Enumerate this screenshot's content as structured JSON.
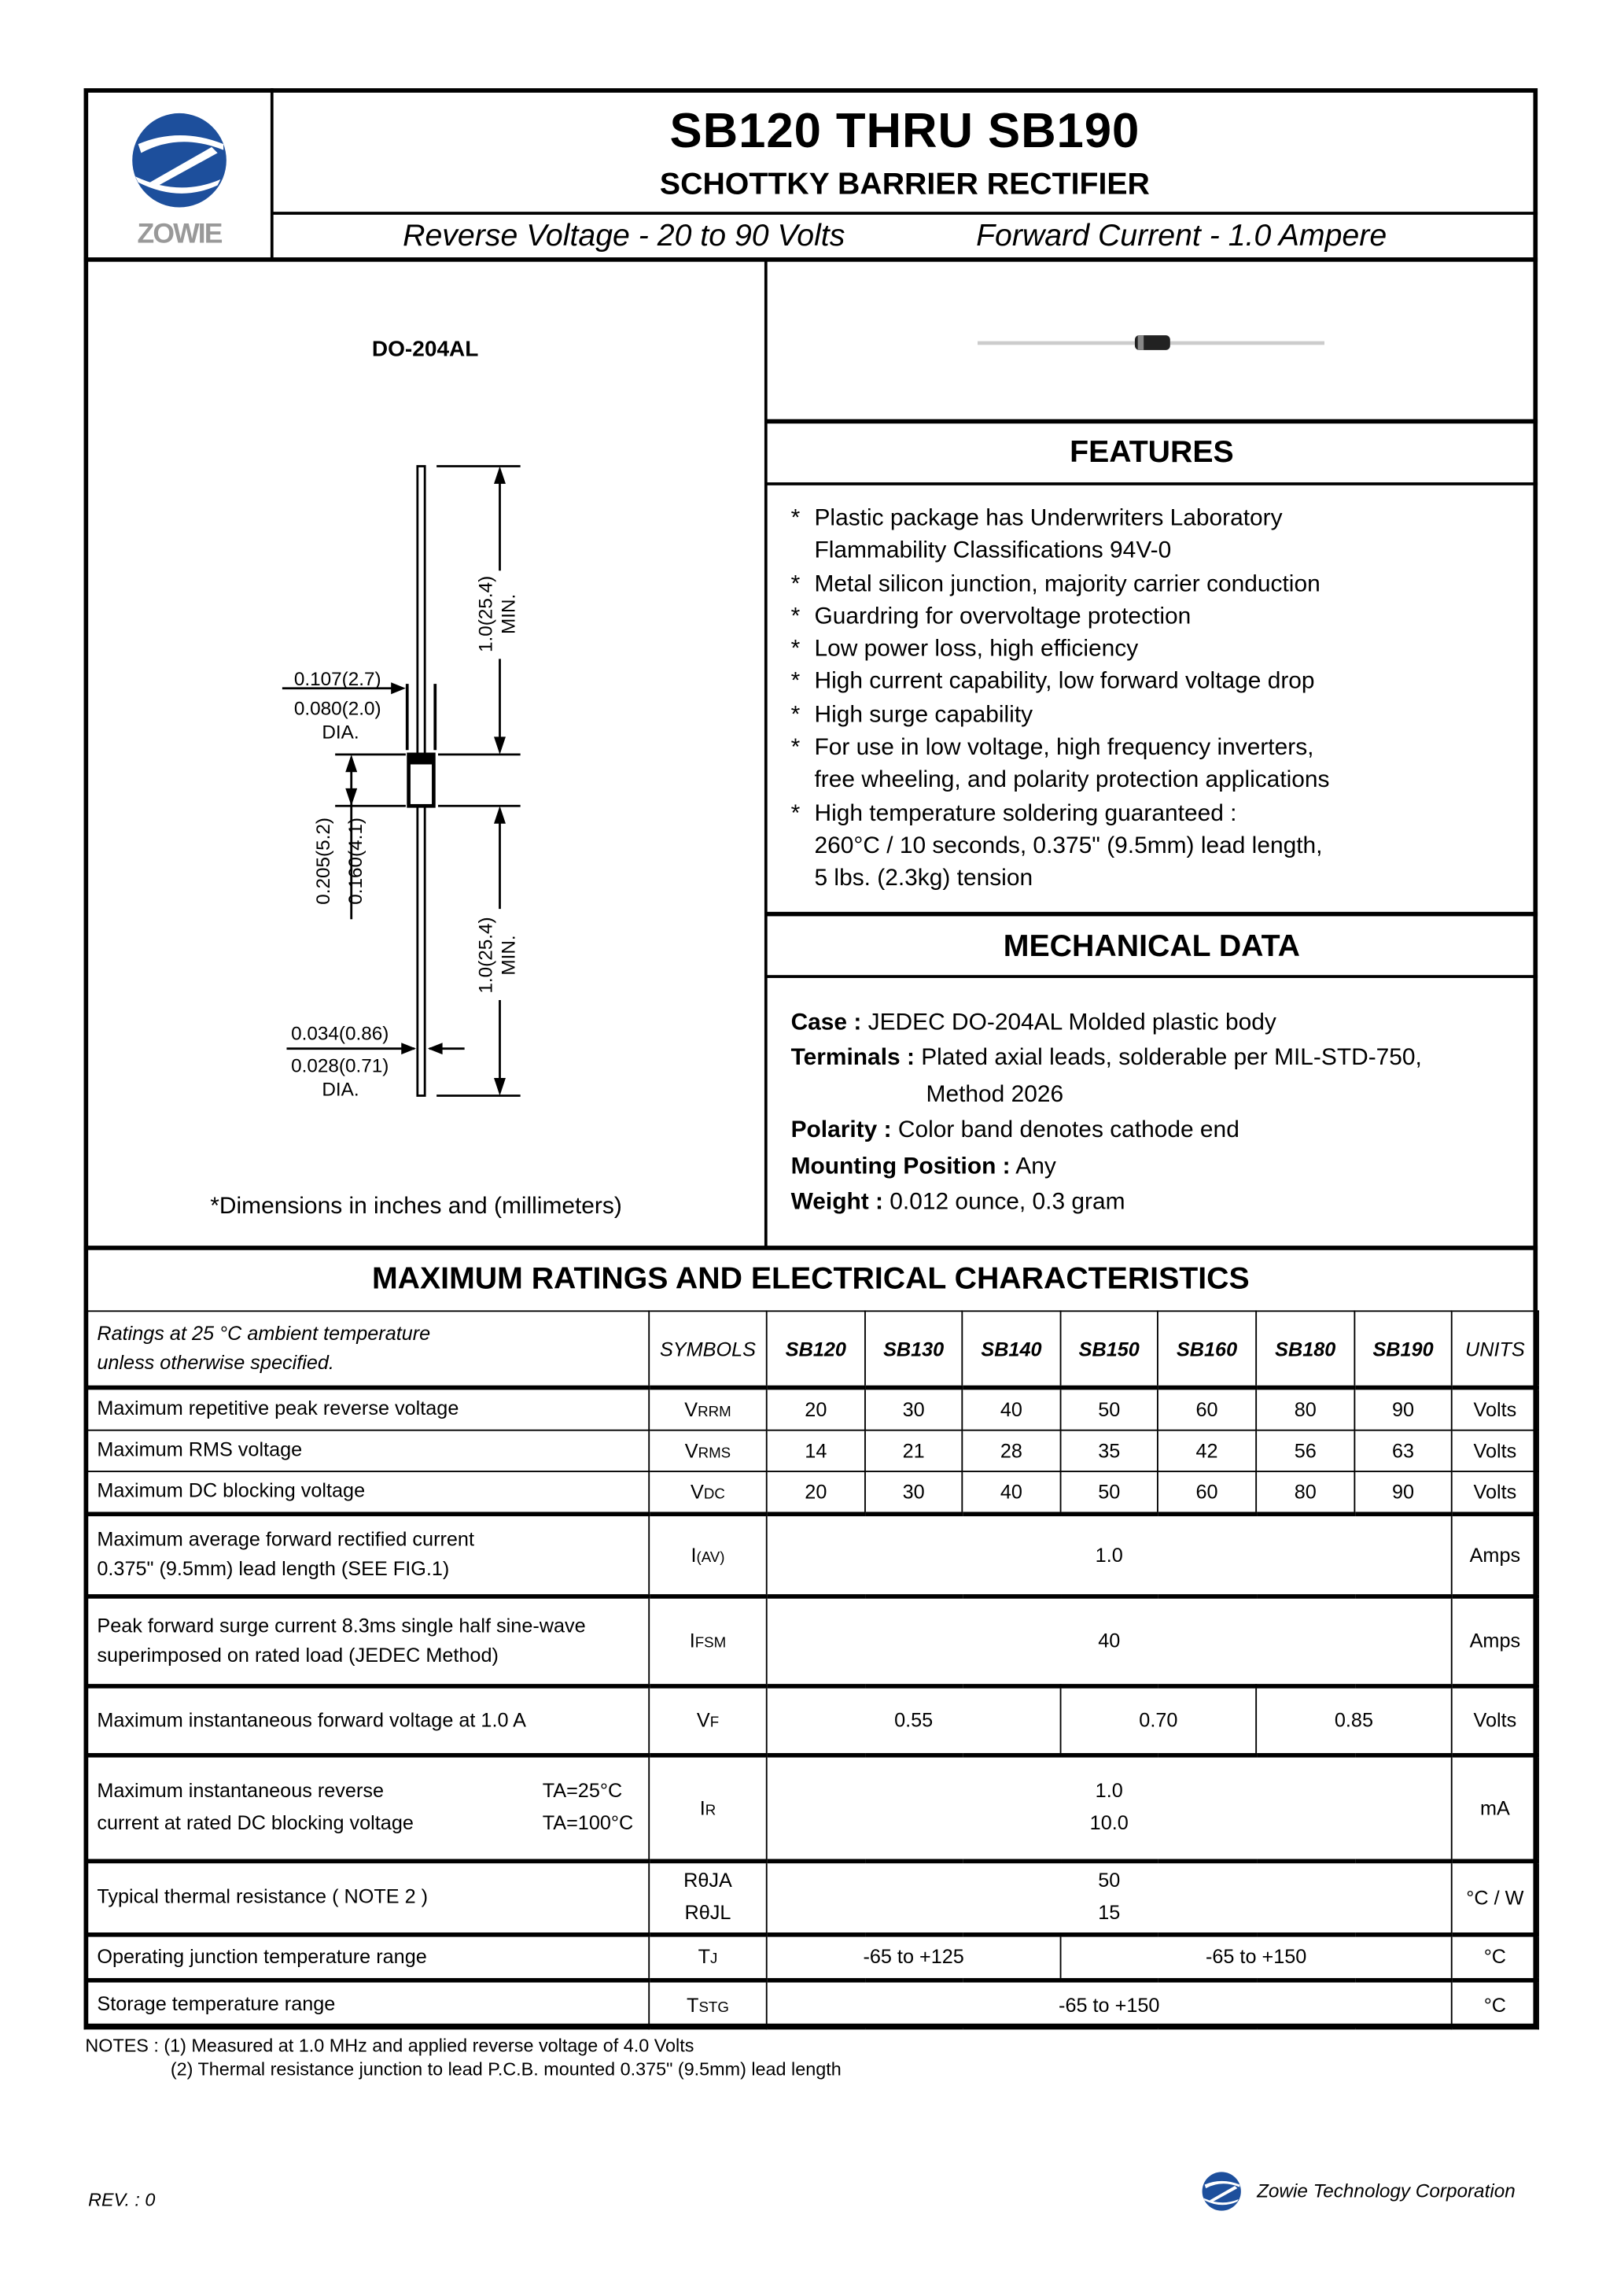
{
  "header": {
    "logo_text": "ZOWIE",
    "title": "SB120  THRU  SB190",
    "subtitle": "SCHOTTKY BARRIER RECTIFIER",
    "reverse_voltage": "Reverse Voltage - 20 to 90 Volts",
    "forward_current": "Forward Current - 1.0 Ampere",
    "brand_color": "#1d4f9c"
  },
  "diagram": {
    "package": "DO-204AL",
    "dim_body_dia_max": "0.107(2.7)",
    "dim_body_dia_min": "0.080(2.0)",
    "dia_label": "DIA.",
    "dim_body_len_max": "0.205(5.2)",
    "dim_body_len_min": "0.160(4.1)",
    "dim_lead_len": "1.0(25.4)",
    "min_label": "MIN.",
    "dim_lead_dia_max": "0.034(0.86)",
    "dim_lead_dia_min": "0.028(0.71)",
    "footnote": "*Dimensions in inches and (millimeters)"
  },
  "features": {
    "heading": "FEATURES",
    "items": [
      [
        "Plastic package has Underwriters Laboratory",
        "Flammability Classifications 94V-0"
      ],
      [
        "Metal silicon junction, majority carrier conduction"
      ],
      [
        "Guardring for overvoltage protection"
      ],
      [
        "Low power loss, high efficiency"
      ],
      [
        "High current capability, low forward voltage drop"
      ],
      [
        "High surge capability"
      ],
      [
        "For use in low voltage, high frequency inverters,",
        "free wheeling, and polarity protection applications"
      ],
      [
        "High temperature soldering guaranteed :",
        "260°C / 10 seconds, 0.375\" (9.5mm) lead length,",
        "5 lbs. (2.3kg) tension"
      ]
    ]
  },
  "mechanical": {
    "heading": "MECHANICAL DATA",
    "case_label": "Case :",
    "case": " JEDEC DO-204AL Molded plastic body",
    "terminals_label": "Terminals :",
    "terminals": " Plated axial leads, solderable per MIL-STD-750,",
    "terminals_2": "Method 2026",
    "polarity_label": "Polarity :",
    "polarity": " Color band denotes cathode end",
    "mounting_label": "Mounting Position :",
    "mounting": " Any",
    "weight_label": "Weight :",
    "weight": " 0.012 ounce, 0.3 gram"
  },
  "ratings": {
    "heading": "MAXIMUM RATINGS AND ELECTRICAL CHARACTERISTICS",
    "note_line1": "Ratings at 25 °C ambient temperature",
    "note_line2": "unless otherwise specified.",
    "symbols_header": "SYMBOLS",
    "parts": [
      "SB120",
      "SB130",
      "SB140",
      "SB150",
      "SB160",
      "SB180",
      "SB190"
    ],
    "units_header": "UNITS",
    "rows": {
      "vrrm": {
        "desc": "Maximum repetitive peak reverse voltage",
        "sym": "V",
        "sub": "RRM",
        "values": [
          "20",
          "30",
          "40",
          "50",
          "60",
          "80",
          "90"
        ],
        "unit": "Volts"
      },
      "vrms": {
        "desc": "Maximum RMS voltage",
        "sym": "V",
        "sub": "RMS",
        "values": [
          "14",
          "21",
          "28",
          "35",
          "42",
          "56",
          "63"
        ],
        "unit": "Volts"
      },
      "vdc": {
        "desc": "Maximum DC blocking voltage",
        "sym": "V",
        "sub": "DC",
        "values": [
          "20",
          "30",
          "40",
          "50",
          "60",
          "80",
          "90"
        ],
        "unit": "Volts"
      },
      "iav": {
        "desc1": "Maximum average forward rectified current",
        "desc2": "0.375\" (9.5mm) lead length (SEE FIG.1)",
        "sym": "I",
        "sub": "(AV)",
        "value": "1.0",
        "unit": "Amps"
      },
      "ifsm": {
        "desc1": "Peak forward surge current 8.3ms single half sine-wave",
        "desc2": "superimposed on rated load (JEDEC Method)",
        "sym": "I",
        "sub": "FSM",
        "value": "40",
        "unit": "Amps"
      },
      "vf": {
        "desc": "Maximum instantaneous forward voltage at 1.0 A",
        "sym": "V",
        "sub": "F",
        "values": [
          "0.55",
          "0.70",
          "0.85"
        ],
        "unit": "Volts"
      },
      "ir": {
        "desc1": "Maximum instantaneous reverse",
        "desc2": "current at rated DC blocking voltage",
        "cond1": "TA=25°C",
        "cond2": "TA=100°C",
        "sym": "I",
        "sub": "R",
        "value1": "1.0",
        "value2": "10.0",
        "unit": "mA"
      },
      "rth": {
        "desc": "Typical thermal resistance ( NOTE 2 )",
        "sym1": "RθJA",
        "sym2": "RθJL",
        "value1": "50",
        "value2": "15",
        "unit": "°C / W"
      },
      "tj": {
        "desc": "Operating junction temperature range",
        "sym": "T",
        "sub": "J",
        "values": [
          "-65 to +125",
          "-65 to +150"
        ],
        "unit": "°C"
      },
      "tstg": {
        "desc": "Storage temperature range",
        "sym": "T",
        "sub": "STG",
        "value": "-65 to +150",
        "unit": "°C"
      }
    }
  },
  "notes": {
    "line1": "NOTES : (1) Measured at 1.0 MHz and applied reverse voltage of 4.0 Volts",
    "line2": "(2) Thermal resistance junction to lead P.C.B. mounted 0.375\" (9.5mm) lead length"
  },
  "footer": {
    "rev": "REV. : 0",
    "company": "Zowie Technology Corporation"
  }
}
